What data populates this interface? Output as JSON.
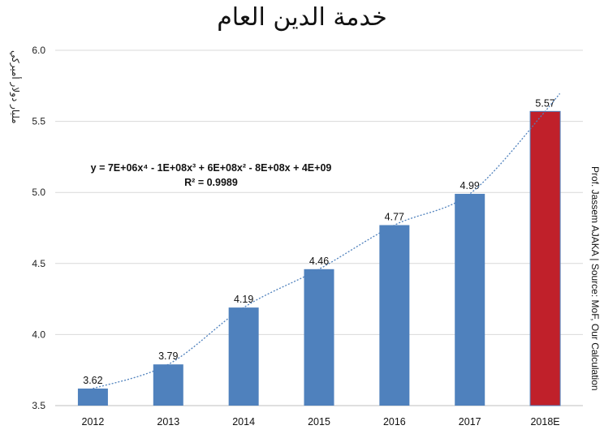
{
  "chart_data": {
    "type": "bar",
    "title": "خدمة الدين العام",
    "ylabel": "مليار دولار أميركي",
    "categories": [
      "2012",
      "2013",
      "2014",
      "2015",
      "2016",
      "2017",
      "2018E"
    ],
    "values": [
      3.62,
      3.79,
      4.19,
      4.46,
      4.77,
      4.99,
      5.57
    ],
    "data_labels": [
      "3.62",
      "3.79",
      "4.19",
      "4.46",
      "4.77",
      "4.99",
      "5.57"
    ],
    "ylim": [
      3.5,
      6.0
    ],
    "yticks": [
      "3.5",
      "4.0",
      "4.5",
      "5.0",
      "5.5",
      "6.0"
    ],
    "grid": true,
    "trendline": {
      "type": "polynomial",
      "equation": "y = 7E+06x⁴ - 1E+08x³ + 6E+08x² - 8E+08x + 4E+09",
      "r_squared": "R² = 0.9989"
    },
    "colors": {
      "bar": "#4f81bd",
      "highlight": "#c0202a",
      "trend": "#4f81bd"
    },
    "source": "Prof. Jassem AJAKA | Source: MoF, Our Calculation"
  }
}
